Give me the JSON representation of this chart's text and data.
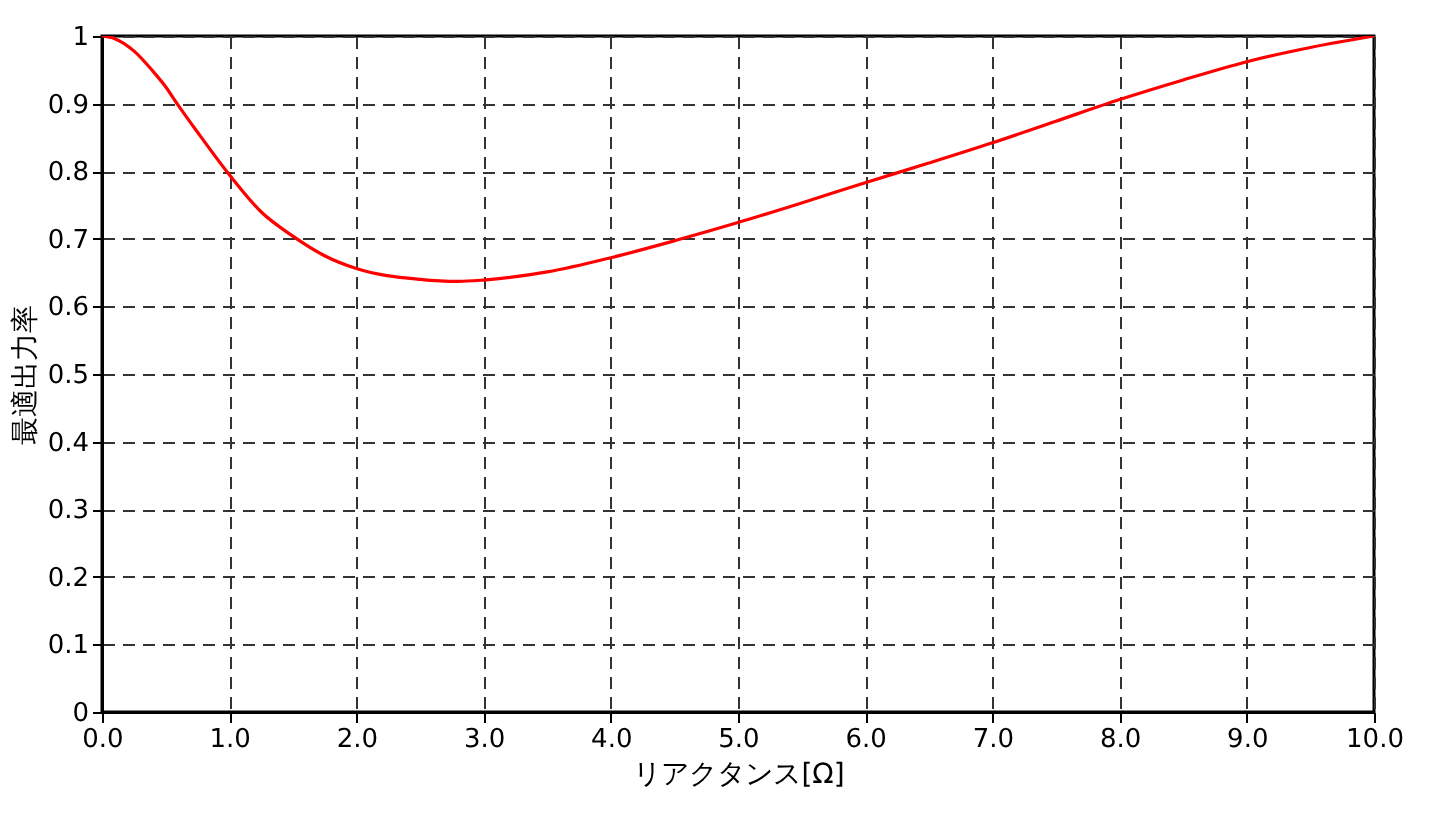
{
  "chart_data": {
    "type": "line",
    "xlabel": "リアクタンス[Ω]",
    "ylabel": "最適出力率",
    "x": [
      0,
      0.1,
      0.25,
      0.4,
      0.5,
      0.59,
      0.75,
      1.0,
      1.25,
      1.5,
      1.75,
      2.0,
      2.5,
      2.8,
      3.0,
      3.5,
      4.0,
      4.5,
      5.0,
      5.5,
      6.0,
      6.5,
      7.0,
      7.5,
      8.0,
      8.5,
      9.0,
      9.5,
      10.0
    ],
    "series": [
      {
        "color": "#ff0000",
        "values": [
          1.0,
          0.996,
          0.978,
          0.948,
          0.925,
          0.9,
          0.858,
          0.795,
          0.74,
          0.704,
          0.675,
          0.656,
          0.64,
          0.637,
          0.639,
          0.651,
          0.672,
          0.697,
          0.724,
          0.753,
          0.783,
          0.812,
          0.842,
          0.874,
          0.906,
          0.935,
          0.962,
          0.983,
          1.0
        ]
      }
    ],
    "xlim": [
      0,
      10
    ],
    "ylim": [
      0,
      1
    ],
    "xticks": [
      {
        "value": 0,
        "label": "0.0"
      },
      {
        "value": 1,
        "label": "1.0"
      },
      {
        "value": 2,
        "label": "2.0"
      },
      {
        "value": 3,
        "label": "3.0"
      },
      {
        "value": 4,
        "label": "4.0"
      },
      {
        "value": 5,
        "label": "5.0"
      },
      {
        "value": 6,
        "label": "6.0"
      },
      {
        "value": 7,
        "label": "7.0"
      },
      {
        "value": 8,
        "label": "8.0"
      },
      {
        "value": 9,
        "label": "9.0"
      },
      {
        "value": 10,
        "label": "10.0"
      }
    ],
    "yticks": [
      0,
      0.1,
      0.2,
      0.3,
      0.4,
      0.5,
      0.6,
      0.7,
      0.8,
      0.9,
      1
    ],
    "grid": true,
    "line_style": "solid",
    "marker": "none"
  }
}
